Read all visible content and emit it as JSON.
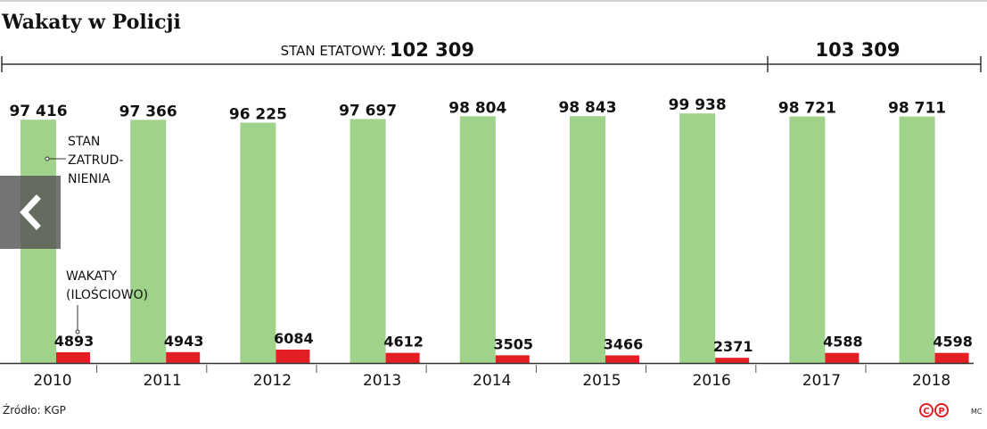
{
  "title": "Wakaty w Policji",
  "source": "Źródło: KGP",
  "author": "MC",
  "logo": "©℗",
  "nav": {
    "icon": "chevron-left-icon"
  },
  "chart_data": {
    "type": "bar",
    "title": "Wakaty w Policji",
    "categories": [
      "2010",
      "2011",
      "2012",
      "2013",
      "2014",
      "2015",
      "2016",
      "2017",
      "2018"
    ],
    "series": [
      {
        "name": "STAN ZATRUD-NIENIA",
        "values": [
          97416,
          97366,
          96225,
          97697,
          98804,
          98843,
          99938,
          98721,
          98711
        ],
        "labels": [
          "97 416",
          "97 366",
          "96 225",
          "97 697",
          "98 804",
          "98 843",
          "99 938",
          "98 721",
          "98 711"
        ],
        "color": "#9fd28a"
      },
      {
        "name": "WAKATY (ILOŚCIOWO)",
        "values": [
          4893,
          4943,
          6084,
          4612,
          3505,
          3466,
          2371,
          4588,
          4598
        ],
        "labels": [
          "4893",
          "4943",
          "6084",
          "4612",
          "3505",
          "3466",
          "2371",
          "4588",
          "4598"
        ],
        "color": "#e31e24"
      }
    ],
    "series_label_lines": [
      [
        "STAN",
        "ZATRUD-",
        "NIENIA"
      ],
      [
        "WAKATY",
        "(ILOŚCIOWO)"
      ]
    ],
    "etat": {
      "label": "STAN ETATOWY:",
      "periods": [
        {
          "years": [
            "2010",
            "2016"
          ],
          "value_label": "102 309"
        },
        {
          "years": [
            "2017",
            "2018"
          ],
          "value_label": "103 309"
        }
      ]
    },
    "ylim": [
      0,
      100000
    ]
  }
}
